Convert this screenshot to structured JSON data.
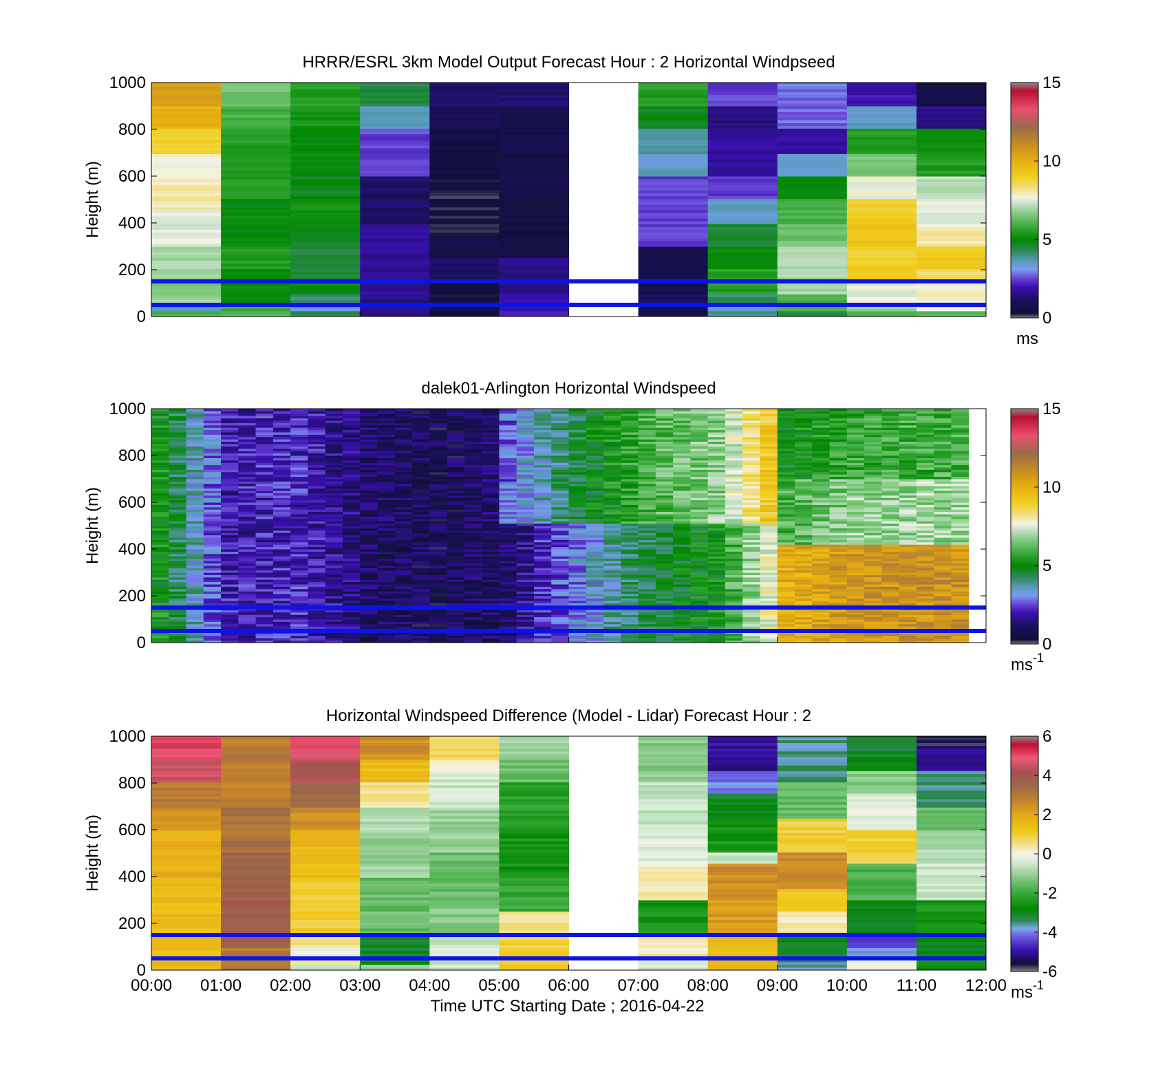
{
  "chart_data": [
    {
      "type": "heatmap",
      "title": "HRRR/ESRL 3km Model Output   Forecast Hour : 2 Horizontal Windpseed",
      "xlabel": "",
      "ylabel": "Height (m)",
      "xlim": [
        0,
        12
      ],
      "ylim": [
        0,
        1000
      ],
      "yticks": [
        "0",
        "200",
        "400",
        "600",
        "800",
        "1000"
      ],
      "xticks": [],
      "colorbar": {
        "ticks": [
          "0",
          "5",
          "10",
          "15"
        ],
        "range": [
          0,
          15
        ],
        "unit": "ms",
        "unit_sup": "",
        "colormap": "speed"
      },
      "reference_lines_m": [
        50,
        150
      ],
      "reference_line_color": "#0a14e6",
      "missing_hours": [
        6
      ],
      "columns": [
        {
          "h": 0,
          "bins": [
            [
              20,
              6
            ],
            [
              50,
              3.5
            ],
            [
              80,
              7
            ],
            [
              150,
              6.5
            ],
            [
              300,
              7
            ],
            [
              450,
              7.5
            ],
            [
              600,
              8
            ],
            [
              700,
              7.7
            ],
            [
              800,
              9
            ],
            [
              900,
              10
            ],
            [
              1000,
              10.5
            ]
          ]
        },
        {
          "h": 1,
          "bins": [
            [
              50,
              6
            ],
            [
              200,
              5
            ],
            [
              300,
              5.5
            ],
            [
              500,
              5
            ],
            [
              800,
              5.5
            ],
            [
              900,
              6
            ],
            [
              1000,
              6.5
            ]
          ]
        },
        {
          "h": 2,
          "bins": [
            [
              20,
              4.5
            ],
            [
              50,
              3
            ],
            [
              100,
              4
            ],
            [
              150,
              5
            ],
            [
              300,
              4.5
            ],
            [
              400,
              4.8
            ],
            [
              500,
              5.2
            ],
            [
              600,
              4.8
            ],
            [
              800,
              5
            ],
            [
              900,
              5.3
            ],
            [
              1000,
              5.5
            ]
          ]
        },
        {
          "h": 3,
          "bins": [
            [
              100,
              1.5
            ],
            [
              400,
              1.8
            ],
            [
              600,
              1.2
            ],
            [
              800,
              2.5
            ],
            [
              900,
              3.5
            ],
            [
              1000,
              4.5
            ]
          ]
        },
        {
          "h": 4,
          "bins": [
            [
              30,
              0.6
            ],
            [
              70,
              1
            ],
            [
              150,
              0.3
            ],
            [
              250,
              1.2
            ],
            [
              350,
              0.8
            ],
            [
              600,
              0.4
            ],
            [
              800,
              0.6
            ],
            [
              900,
              1
            ],
            [
              1000,
              1.3
            ]
          ]
        },
        {
          "h": 5,
          "bins": [
            [
              100,
              2
            ],
            [
              250,
              1.5
            ],
            [
              500,
              0.6
            ],
            [
              700,
              0.7
            ],
            [
              900,
              0.8
            ],
            [
              1000,
              1.4
            ]
          ]
        },
        {
          "h": 7,
          "bins": [
            [
              100,
              1
            ],
            [
              300,
              0.8
            ],
            [
              600,
              2.5
            ],
            [
              700,
              3.5
            ],
            [
              800,
              3.8
            ],
            [
              900,
              4.8
            ],
            [
              1000,
              5.5
            ]
          ]
        },
        {
          "h": 8,
          "bins": [
            [
              20,
              4
            ],
            [
              60,
              3.5
            ],
            [
              100,
              4.2
            ],
            [
              200,
              5.5
            ],
            [
              300,
              5
            ],
            [
              400,
              4.5
            ],
            [
              500,
              3.5
            ],
            [
              600,
              2.5
            ],
            [
              800,
              1.8
            ],
            [
              900,
              1.5
            ],
            [
              1000,
              2.5
            ]
          ]
        },
        {
          "h": 9,
          "bins": [
            [
              20,
              4.5
            ],
            [
              100,
              6
            ],
            [
              300,
              7
            ],
            [
              400,
              6.5
            ],
            [
              500,
              6
            ],
            [
              600,
              5
            ],
            [
              700,
              3.5
            ],
            [
              800,
              1.8
            ],
            [
              1000,
              2.8
            ]
          ]
        },
        {
          "h": 10,
          "bins": [
            [
              20,
              6
            ],
            [
              60,
              7
            ],
            [
              150,
              7.6
            ],
            [
              300,
              9
            ],
            [
              400,
              9.5
            ],
            [
              500,
              9
            ],
            [
              600,
              7.7
            ],
            [
              700,
              6.5
            ],
            [
              800,
              5.5
            ],
            [
              900,
              3.5
            ],
            [
              1000,
              2
            ]
          ]
        },
        {
          "h": 11,
          "bins": [
            [
              20,
              6
            ],
            [
              60,
              7.5
            ],
            [
              150,
              7.8
            ],
            [
              200,
              8.5
            ],
            [
              300,
              9.2
            ],
            [
              400,
              8
            ],
            [
              500,
              7.6
            ],
            [
              600,
              7.2
            ],
            [
              700,
              5.5
            ],
            [
              800,
              5
            ],
            [
              900,
              1.6
            ],
            [
              1000,
              0.6
            ]
          ]
        }
      ]
    },
    {
      "type": "heatmap",
      "title": "dalek01-Arlington  Horizontal Windspeed",
      "xlabel": "",
      "ylabel": "Height (m)",
      "xlim": [
        0,
        12
      ],
      "ylim": [
        0,
        1000
      ],
      "yticks": [
        "0",
        "200",
        "400",
        "600",
        "800",
        "1000"
      ],
      "xticks": [],
      "colorbar": {
        "ticks": [
          "0",
          "5",
          "10",
          "15"
        ],
        "range": [
          0,
          15
        ],
        "unit": "ms",
        "unit_sup": "-1",
        "colormap": "speed"
      },
      "reference_lines_m": [
        50,
        150
      ],
      "reference_line_color": "#0a14e6",
      "hour_means": [
        5.2,
        2.0,
        2.2,
        1.2,
        0.9,
        1.3,
        3.0,
        4.5,
        5.2,
        8.5,
        9.3,
        9.4
      ]
    },
    {
      "type": "heatmap",
      "title": "Horizontal Windspeed Difference (Model - Lidar) Forecast Hour : 2",
      "xlabel": "Time UTC  Starting Date ; 2016-04-22",
      "ylabel": "Height (m)",
      "xlim": [
        0,
        12
      ],
      "ylim": [
        0,
        1000
      ],
      "yticks": [
        "0",
        "200",
        "400",
        "600",
        "800",
        "1000"
      ],
      "xticks": [
        "00:00",
        "01:00",
        "02:00",
        "03:00",
        "04:00",
        "05:00",
        "06:00",
        "07:00",
        "08:00",
        "09:00",
        "10:00",
        "11:00",
        "12:00"
      ],
      "colorbar": {
        "ticks": [
          "-6",
          "-4",
          "-2",
          "0",
          "2",
          "4",
          "6"
        ],
        "range": [
          -6,
          6
        ],
        "unit": "ms",
        "unit_sup": "-1",
        "colormap": "diff"
      },
      "reference_lines_m": [
        50,
        150
      ],
      "reference_line_color": "#0a14e6",
      "missing_hours": [
        6
      ],
      "columns": [
        {
          "h": 0,
          "bins": [
            [
              100,
              1.5
            ],
            [
              400,
              1.5
            ],
            [
              600,
              1.8
            ],
            [
              700,
              2.5
            ],
            [
              800,
              3
            ],
            [
              900,
              4.5
            ],
            [
              1000,
              5
            ]
          ]
        },
        {
          "h": 1,
          "bins": [
            [
              100,
              3
            ],
            [
              300,
              3.8
            ],
            [
              500,
              3.6
            ],
            [
              700,
              3.2
            ],
            [
              900,
              2.8
            ],
            [
              1000,
              3
            ]
          ]
        },
        {
          "h": 2,
          "bins": [
            [
              20,
              -0.5
            ],
            [
              50,
              0.2
            ],
            [
              100,
              -0.3
            ],
            [
              150,
              0.5
            ],
            [
              400,
              1
            ],
            [
              600,
              1.5
            ],
            [
              700,
              2.5
            ],
            [
              800,
              3.5
            ],
            [
              900,
              4.2
            ],
            [
              1000,
              4.8
            ]
          ]
        },
        {
          "h": 3,
          "bins": [
            [
              20,
              -1
            ],
            [
              150,
              -3
            ],
            [
              400,
              -1.5
            ],
            [
              600,
              -1
            ],
            [
              700,
              -0.8
            ],
            [
              800,
              0.5
            ],
            [
              900,
              1.5
            ],
            [
              1000,
              2.5
            ]
          ]
        },
        {
          "h": 4,
          "bins": [
            [
              150,
              -0.5
            ],
            [
              300,
              -1.2
            ],
            [
              500,
              -1.5
            ],
            [
              700,
              -1
            ],
            [
              850,
              -0.5
            ],
            [
              900,
              0.2
            ],
            [
              1000,
              0.8
            ]
          ]
        },
        {
          "h": 5,
          "bins": [
            [
              150,
              1
            ],
            [
              250,
              0.5
            ],
            [
              400,
              -2
            ],
            [
              600,
              -2.5
            ],
            [
              800,
              -2.2
            ],
            [
              900,
              -1.5
            ],
            [
              1000,
              -1
            ]
          ]
        },
        {
          "h": 7,
          "bins": [
            [
              50,
              -0.5
            ],
            [
              150,
              0.3
            ],
            [
              300,
              -2.5
            ],
            [
              450,
              0.2
            ],
            [
              600,
              -0.3
            ],
            [
              800,
              -0.6
            ],
            [
              1000,
              -1.2
            ]
          ]
        },
        {
          "h": 8,
          "bins": [
            [
              150,
              1.5
            ],
            [
              300,
              2.2
            ],
            [
              450,
              2.5
            ],
            [
              500,
              -0.5
            ],
            [
              650,
              -2.5
            ],
            [
              750,
              -3
            ],
            [
              850,
              -4
            ],
            [
              1000,
              -5
            ]
          ]
        },
        {
          "h": 9,
          "bins": [
            [
              50,
              -3.5
            ],
            [
              150,
              -3
            ],
            [
              250,
              0.3
            ],
            [
              350,
              1.2
            ],
            [
              500,
              2.5
            ],
            [
              650,
              1
            ],
            [
              800,
              -1.5
            ],
            [
              1000,
              -3.5
            ]
          ]
        },
        {
          "h": 10,
          "bins": [
            [
              50,
              -0.2
            ],
            [
              100,
              -4
            ],
            [
              150,
              -4.5
            ],
            [
              300,
              -3
            ],
            [
              450,
              -1.8
            ],
            [
              600,
              1
            ],
            [
              750,
              -0.3
            ],
            [
              850,
              -1.2
            ],
            [
              1000,
              -3
            ]
          ]
        },
        {
          "h": 11,
          "bins": [
            [
              50,
              -2.5
            ],
            [
              150,
              -3
            ],
            [
              300,
              -2.5
            ],
            [
              450,
              -0.5
            ],
            [
              600,
              -0.8
            ],
            [
              700,
              -1.5
            ],
            [
              850,
              -3.5
            ],
            [
              950,
              -5
            ],
            [
              1000,
              -5.5
            ]
          ]
        }
      ]
    }
  ]
}
